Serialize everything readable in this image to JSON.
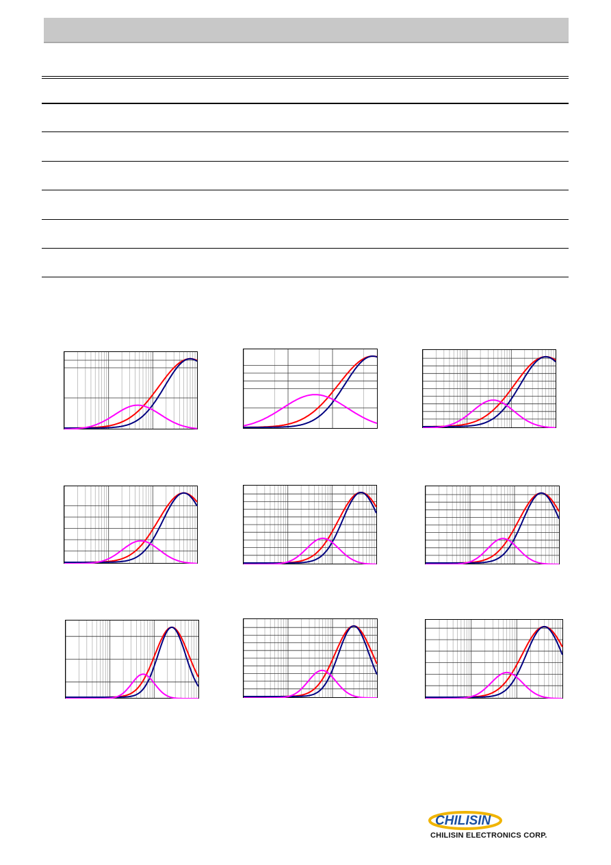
{
  "header": {
    "bar_color": "#c8c8c8"
  },
  "table": {
    "rows": 6
  },
  "colors": {
    "red": "#ff0000",
    "navy": "#000080",
    "magenta": "#ff00ff"
  },
  "charts": [
    {
      "id": "c1",
      "xmin": 1,
      "xmax": 1000,
      "peak": 700,
      "width": 0.55,
      "qpeak": 0.2,
      "qw": 0.5,
      "hgrid": [
        0.4,
        0.8,
        0.9
      ],
      "vgrid": "log"
    },
    {
      "id": "c2",
      "xmin": 1,
      "xmax": 1000,
      "peak": 800,
      "width": 0.6,
      "qpeak": 0.33,
      "qw": 0.7,
      "hgrid": [
        0.25,
        0.5,
        0.6,
        0.7,
        0.8
      ],
      "vgrid": "sparse"
    },
    {
      "id": "c3",
      "xmin": 1,
      "xmax": 1000,
      "peak": 600,
      "width": 0.55,
      "qpeak": 0.25,
      "qw": 0.45,
      "hgrid": [
        0.1,
        0.2,
        0.3,
        0.4,
        0.5,
        0.6,
        0.7,
        0.8,
        0.9
      ],
      "vgrid": "log"
    },
    {
      "id": "c4",
      "xmin": 1,
      "xmax": 1000,
      "peak": 500,
      "width": 0.45,
      "qpeak": 0.18,
      "qw": 0.4,
      "hgrid": [
        0.15,
        0.3,
        0.45,
        0.6,
        0.75
      ],
      "vgrid": "log"
    },
    {
      "id": "c5",
      "xmin": 1,
      "xmax": 1000,
      "peak": 450,
      "width": 0.4,
      "qpeak": 0.22,
      "qw": 0.35,
      "hgrid": [
        0.1,
        0.2,
        0.3,
        0.4,
        0.5,
        0.6,
        0.7,
        0.8,
        0.9
      ],
      "vgrid": "log"
    },
    {
      "id": "c6",
      "xmin": 1,
      "xmax": 1000,
      "peak": 400,
      "width": 0.4,
      "qpeak": 0.22,
      "qw": 0.33,
      "hgrid": [
        0.1,
        0.2,
        0.3,
        0.4,
        0.5,
        0.6,
        0.7,
        0.8,
        0.9
      ],
      "vgrid": "log"
    },
    {
      "id": "c7",
      "xmin": 1,
      "xmax": 1000,
      "peak": 250,
      "width": 0.3,
      "qpeak": 0.2,
      "qw": 0.25,
      "hgrid": [
        0.2,
        0.5,
        0.8
      ],
      "vgrid": "log"
    },
    {
      "id": "c8",
      "xmin": 1,
      "xmax": 1000,
      "peak": 300,
      "width": 0.33,
      "qpeak": 0.24,
      "qw": 0.3,
      "hgrid": [
        0.1,
        0.2,
        0.3,
        0.4,
        0.5,
        0.6,
        0.7,
        0.8,
        0.9
      ],
      "vgrid": "log"
    },
    {
      "id": "c9",
      "xmin": 1,
      "xmax": 1000,
      "peak": 400,
      "width": 0.38,
      "qpeak": 0.22,
      "qw": 0.33,
      "hgrid": [
        0.15,
        0.3,
        0.45,
        0.6,
        0.75,
        0.9
      ],
      "vgrid": "log"
    }
  ],
  "logo": {
    "brand": "CHILISIN",
    "company": "CHILISIN ELECTRONICS CORP.",
    "accent": "#1a4fa0",
    "swoosh": "#f0b400"
  }
}
